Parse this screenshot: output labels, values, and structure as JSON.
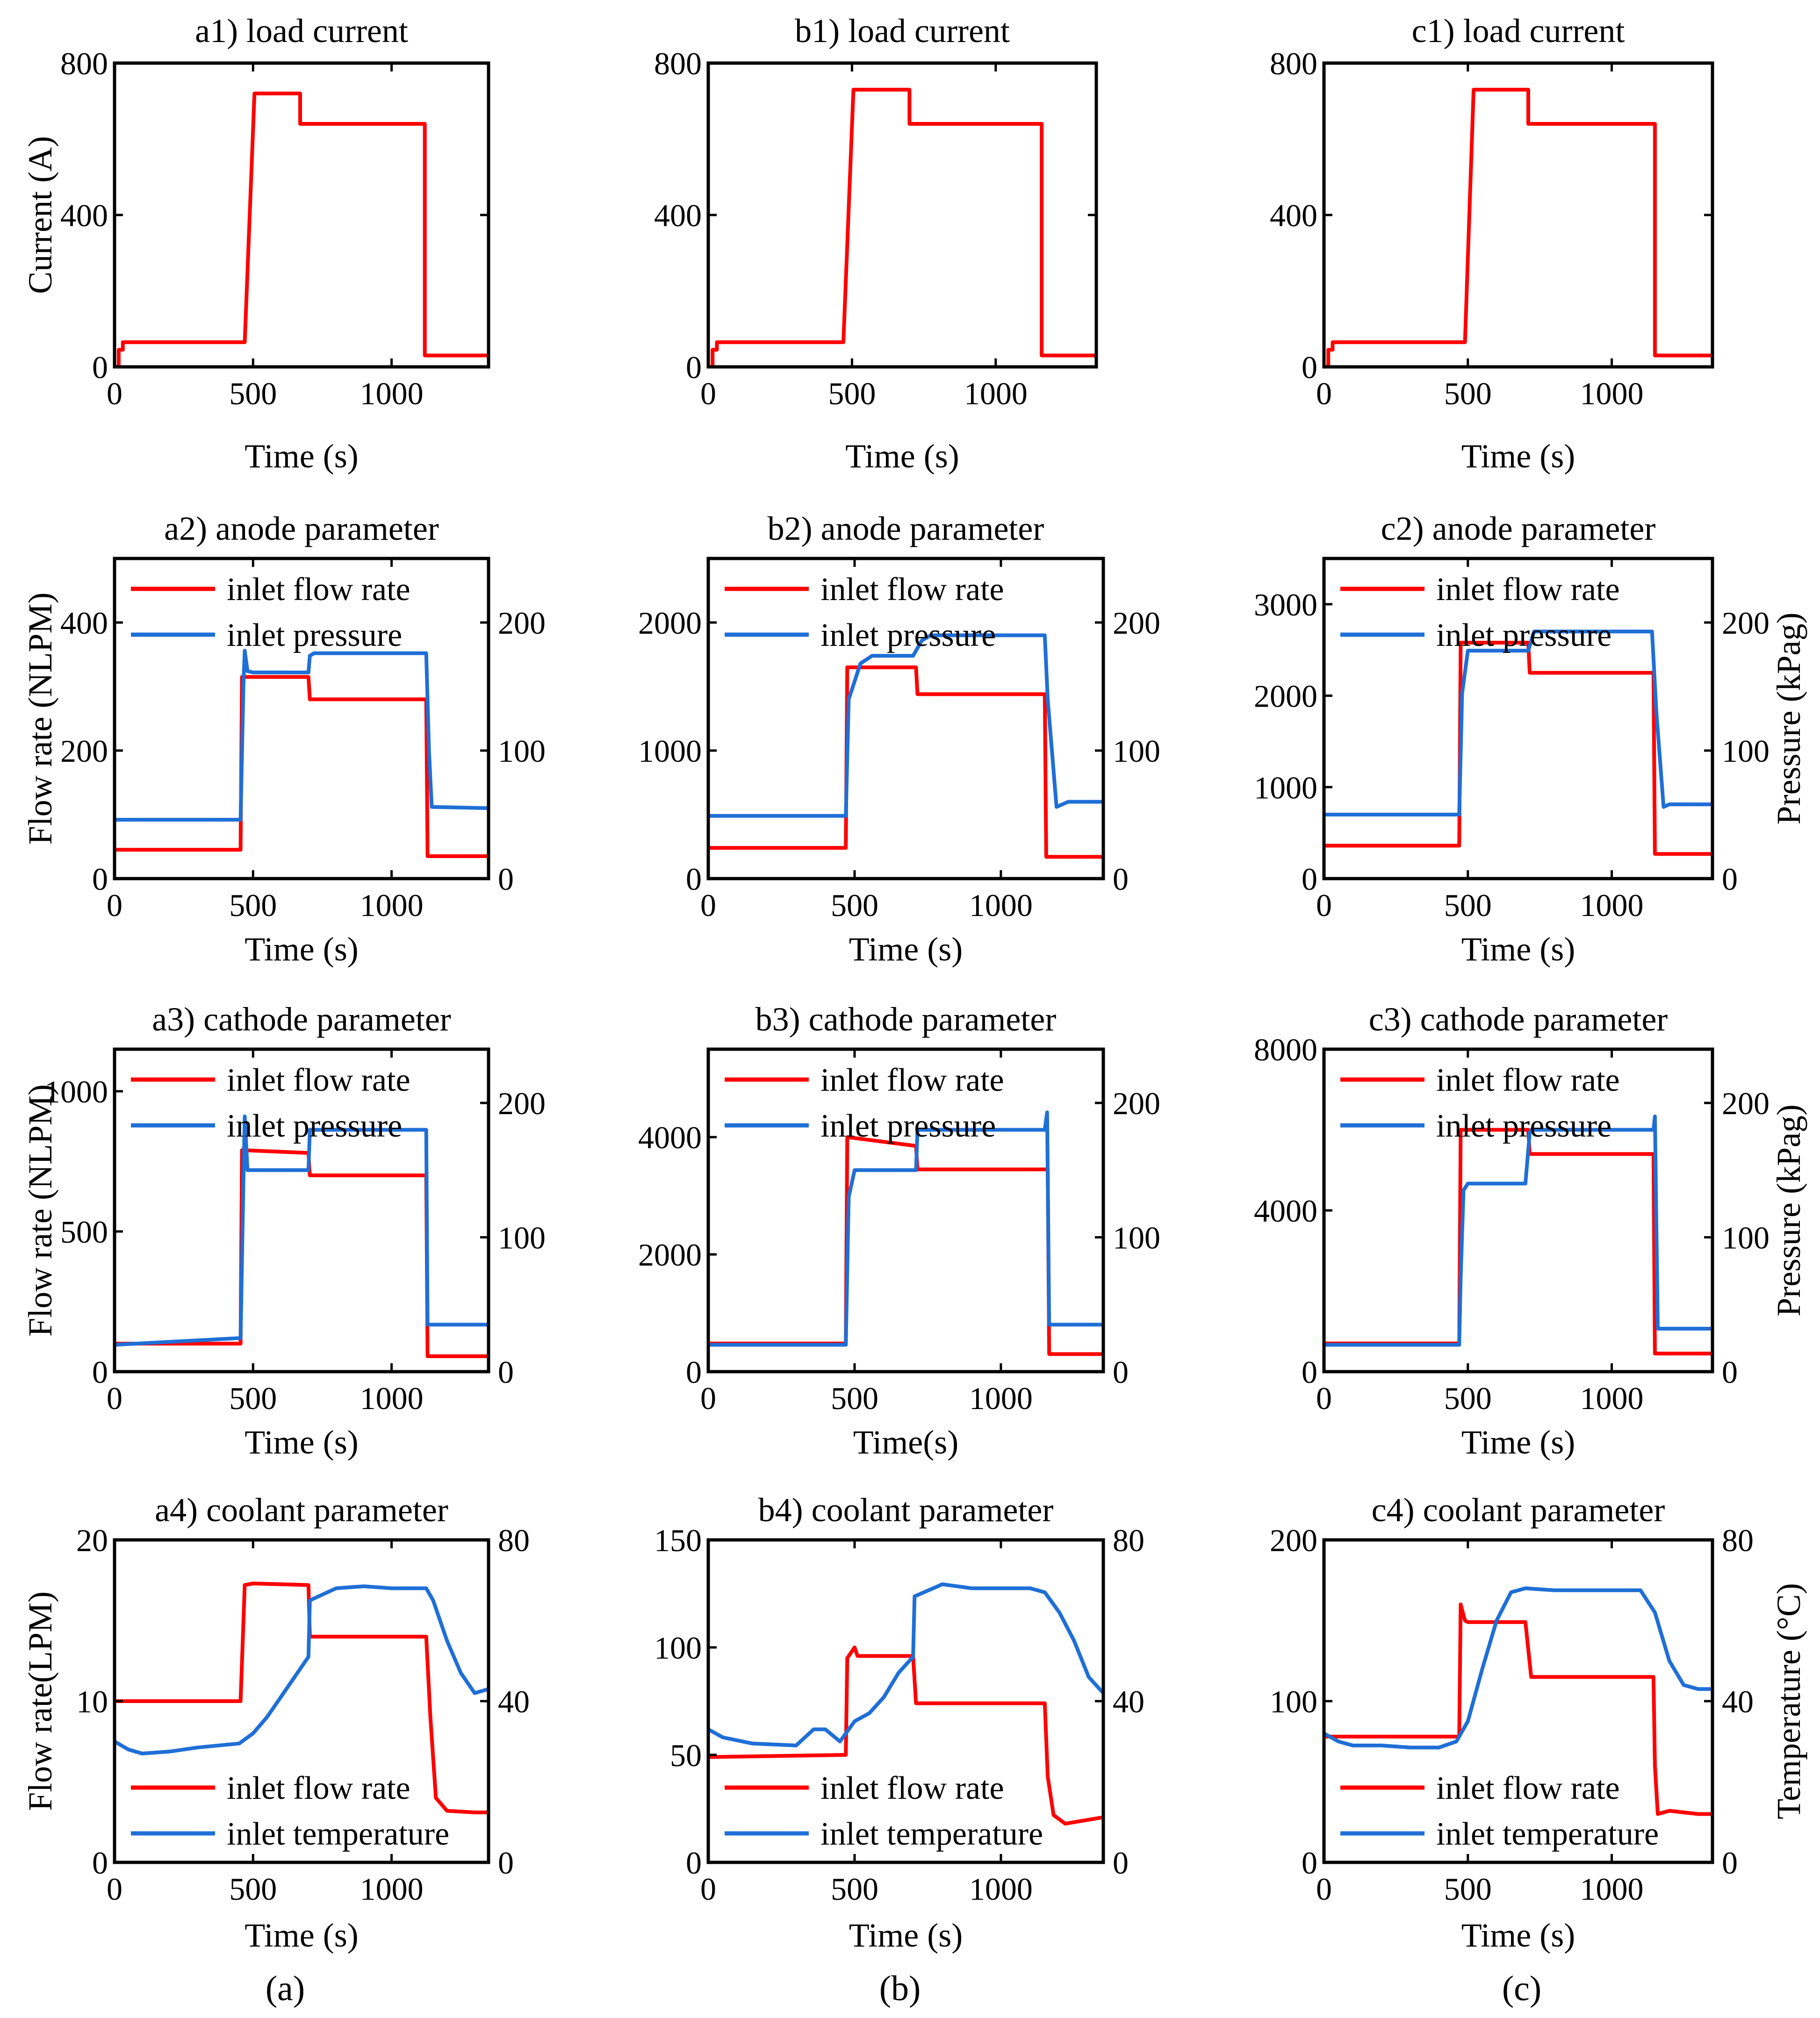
{
  "colors": {
    "red": "#ff0000",
    "blue": "#1f6fd6"
  },
  "group_labels": [
    "(a)",
    "(b)",
    "(c)"
  ],
  "chart_data": [
    {
      "id": "a1",
      "type": "line",
      "title": "a1) load current",
      "xlabel": "Time (s)",
      "ylabel": "Current (A)",
      "xlim": [
        0,
        1350
      ],
      "ylim": [
        0,
        800
      ],
      "xticks": [
        0,
        500,
        1000
      ],
      "yticks": [
        0,
        400,
        800
      ],
      "series": [
        {
          "name": "load current",
          "color": "red",
          "x": [
            0,
            15,
            15,
            30,
            30,
            470,
            505,
            505,
            670,
            670,
            1120,
            1120,
            1350
          ],
          "y": [
            0,
            0,
            45,
            45,
            65,
            65,
            720,
            720,
            720,
            640,
            640,
            30,
            30
          ]
        }
      ]
    },
    {
      "id": "b1",
      "type": "line",
      "title": "b1) load current",
      "xlabel": "Time (s)",
      "ylabel": "",
      "xlim": [
        0,
        1350
      ],
      "ylim": [
        0,
        800
      ],
      "xticks": [
        0,
        500,
        1000
      ],
      "yticks": [
        0,
        400,
        800
      ],
      "series": [
        {
          "name": "load current",
          "color": "red",
          "x": [
            0,
            15,
            15,
            30,
            30,
            470,
            505,
            505,
            700,
            700,
            1160,
            1160,
            1350
          ],
          "y": [
            0,
            0,
            45,
            45,
            65,
            65,
            730,
            730,
            730,
            640,
            640,
            30,
            30
          ]
        }
      ]
    },
    {
      "id": "c1",
      "type": "line",
      "title": "c1) load current",
      "xlabel": "Time (s)",
      "ylabel": "",
      "xlim": [
        0,
        1350
      ],
      "ylim": [
        0,
        800
      ],
      "xticks": [
        0,
        500,
        1000
      ],
      "yticks": [
        0,
        400,
        800
      ],
      "series": [
        {
          "name": "load current",
          "color": "red",
          "x": [
            0,
            15,
            15,
            30,
            30,
            490,
            520,
            520,
            710,
            710,
            1150,
            1150,
            1350
          ],
          "y": [
            0,
            0,
            45,
            45,
            65,
            65,
            730,
            730,
            730,
            640,
            640,
            30,
            30
          ]
        }
      ]
    },
    {
      "id": "a2",
      "type": "line",
      "title": "a2) anode parameter",
      "xlabel": "Time (s)",
      "ylabel": "Flow rate (NLPM)",
      "ylabel_right": "",
      "xlim": [
        0,
        1350
      ],
      "ylim": [
        0,
        500
      ],
      "ylim_right": [
        0,
        250
      ],
      "xticks": [
        0,
        500,
        1000
      ],
      "yticks": [
        0,
        200,
        400
      ],
      "yticks_right": [
        0,
        100,
        200
      ],
      "legend": "top-left",
      "series": [
        {
          "name": "inlet flow rate",
          "color": "red",
          "axis": "left",
          "x": [
            0,
            455,
            460,
            700,
            705,
            1125,
            1130,
            1350
          ],
          "y": [
            45,
            45,
            315,
            315,
            280,
            280,
            35,
            35
          ]
        },
        {
          "name": "inlet pressure",
          "color": "blue",
          "axis": "right",
          "x": [
            0,
            455,
            465,
            470,
            480,
            500,
            700,
            705,
            720,
            1125,
            1135,
            1145,
            1350
          ],
          "y": [
            46,
            46,
            150,
            178,
            162,
            161,
            161,
            174,
            176,
            176,
            100,
            56,
            55
          ]
        }
      ]
    },
    {
      "id": "b2",
      "type": "line",
      "title": "b2) anode parameter",
      "xlabel": "Time (s)",
      "ylabel": "",
      "ylabel_right": "",
      "xlim": [
        0,
        1350
      ],
      "ylim": [
        0,
        2500
      ],
      "ylim_right": [
        0,
        250
      ],
      "xticks": [
        0,
        500,
        1000
      ],
      "yticks": [
        0,
        1000,
        2000
      ],
      "yticks_right": [
        0,
        100,
        200
      ],
      "legend": "top-left",
      "series": [
        {
          "name": "inlet flow rate",
          "color": "red",
          "axis": "left",
          "x": [
            0,
            470,
            475,
            710,
            715,
            1150,
            1155,
            1350
          ],
          "y": [
            240,
            240,
            1650,
            1650,
            1440,
            1440,
            170,
            170
          ]
        },
        {
          "name": "inlet pressure",
          "color": "blue",
          "axis": "right",
          "x": [
            0,
            470,
            480,
            520,
            560,
            700,
            730,
            760,
            1150,
            1160,
            1190,
            1230,
            1350
          ],
          "y": [
            49,
            49,
            140,
            168,
            174,
            174,
            186,
            190,
            190,
            140,
            56,
            60,
            60
          ]
        }
      ]
    },
    {
      "id": "c2",
      "type": "line",
      "title": "c2) anode parameter",
      "xlabel": "Time (s)",
      "ylabel": "",
      "ylabel_right": "Pressure (kPag)",
      "xlim": [
        0,
        1350
      ],
      "ylim": [
        0,
        3500
      ],
      "ylim_right": [
        0,
        250
      ],
      "xticks": [
        0,
        500,
        1000
      ],
      "yticks": [
        0,
        1000,
        2000,
        3000
      ],
      "yticks_right": [
        0,
        100,
        200
      ],
      "legend": "top-left",
      "series": [
        {
          "name": "inlet flow rate",
          "color": "red",
          "axis": "left",
          "x": [
            0,
            470,
            475,
            710,
            715,
            1145,
            1150,
            1350
          ],
          "y": [
            360,
            360,
            2580,
            2580,
            2250,
            2250,
            270,
            270
          ]
        },
        {
          "name": "inlet pressure",
          "color": "blue",
          "axis": "right",
          "x": [
            0,
            470,
            480,
            500,
            710,
            730,
            1140,
            1155,
            1180,
            1200,
            1350
          ],
          "y": [
            50,
            50,
            145,
            178,
            178,
            193,
            193,
            130,
            56,
            58,
            58
          ]
        }
      ]
    },
    {
      "id": "a3",
      "type": "line",
      "title": "a3) cathode parameter",
      "xlabel": "Time (s)",
      "ylabel": "Flow rate (NLPM)",
      "ylabel_right": "",
      "xlim": [
        0,
        1350
      ],
      "ylim": [
        0,
        1150
      ],
      "ylim_right": [
        0,
        240
      ],
      "xticks": [
        0,
        500,
        1000
      ],
      "yticks": [
        0,
        500,
        1000
      ],
      "yticks_right": [
        0,
        100,
        200
      ],
      "legend": "top-left",
      "series": [
        {
          "name": "inlet flow rate",
          "color": "red",
          "axis": "left",
          "x": [
            0,
            455,
            460,
            700,
            705,
            1125,
            1130,
            1350
          ],
          "y": [
            100,
            100,
            790,
            780,
            700,
            700,
            55,
            55
          ]
        },
        {
          "name": "inlet pressure",
          "color": "blue",
          "axis": "right",
          "x": [
            0,
            455,
            465,
            470,
            480,
            700,
            705,
            1125,
            1130,
            1350
          ],
          "y": [
            20,
            25,
            140,
            190,
            150,
            150,
            180,
            180,
            35,
            35
          ]
        }
      ]
    },
    {
      "id": "b3",
      "type": "line",
      "title": "b3) cathode parameter",
      "xlabel": "Time(s)",
      "ylabel": "",
      "ylabel_right": "",
      "xlim": [
        0,
        1350
      ],
      "ylim": [
        0,
        5500
      ],
      "ylim_right": [
        0,
        240
      ],
      "xticks": [
        0,
        500,
        1000
      ],
      "yticks": [
        0,
        2000,
        4000
      ],
      "yticks_right": [
        0,
        100,
        200
      ],
      "legend": "top-left",
      "series": [
        {
          "name": "inlet flow rate",
          "color": "red",
          "axis": "left",
          "x": [
            0,
            470,
            475,
            710,
            715,
            1160,
            1165,
            1350
          ],
          "y": [
            480,
            480,
            4000,
            3850,
            3450,
            3450,
            300,
            300
          ]
        },
        {
          "name": "inlet pressure",
          "color": "blue",
          "axis": "right",
          "x": [
            0,
            470,
            480,
            500,
            710,
            715,
            1150,
            1158,
            1165,
            1175,
            1350
          ],
          "y": [
            20,
            20,
            130,
            150,
            150,
            180,
            180,
            193,
            35,
            35,
            35
          ]
        }
      ]
    },
    {
      "id": "c3",
      "type": "line",
      "title": "c3) cathode parameter",
      "xlabel": "Time (s)",
      "ylabel": "",
      "ylabel_right": "Pressure (kPag)",
      "xlim": [
        0,
        1350
      ],
      "ylim": [
        0,
        8000
      ],
      "ylim_right": [
        0,
        240
      ],
      "xticks": [
        0,
        500,
        1000
      ],
      "yticks": [
        0,
        4000,
        8000
      ],
      "yticks_right": [
        0,
        100,
        200
      ],
      "legend": "top-left",
      "series": [
        {
          "name": "inlet flow rate",
          "color": "red",
          "axis": "left",
          "x": [
            0,
            470,
            475,
            710,
            715,
            1145,
            1150,
            1350
          ],
          "y": [
            700,
            700,
            6000,
            6000,
            5400,
            5400,
            450,
            450
          ]
        },
        {
          "name": "inlet pressure",
          "color": "blue",
          "axis": "right",
          "x": [
            0,
            470,
            475,
            485,
            500,
            700,
            715,
            720,
            1145,
            1150,
            1160,
            1350
          ],
          "y": [
            20,
            20,
            70,
            135,
            140,
            140,
            178,
            180,
            180,
            190,
            32,
            32
          ]
        }
      ]
    },
    {
      "id": "a4",
      "type": "line",
      "title": "a4) coolant parameter",
      "xlabel": "Time (s)",
      "ylabel": "Flow rate(LPM)",
      "ylabel_right": "",
      "xlim": [
        0,
        1350
      ],
      "ylim": [
        0,
        20
      ],
      "ylim_right": [
        0,
        80
      ],
      "xticks": [
        0,
        500,
        1000
      ],
      "yticks": [
        0,
        10,
        20
      ],
      "yticks_right": [
        0,
        40,
        80
      ],
      "legend": "bottom-left",
      "series": [
        {
          "name": "inlet flow rate",
          "color": "red",
          "axis": "left",
          "x": [
            0,
            455,
            470,
            500,
            700,
            705,
            1125,
            1140,
            1160,
            1200,
            1300,
            1350
          ],
          "y": [
            10,
            10,
            17.2,
            17.3,
            17.2,
            14,
            14,
            9,
            4,
            3.2,
            3.1,
            3.1
          ]
        },
        {
          "name": "inlet temperature",
          "color": "blue",
          "axis": "right",
          "x": [
            0,
            50,
            100,
            200,
            300,
            450,
            500,
            550,
            600,
            650,
            700,
            705,
            800,
            900,
            1000,
            1125,
            1150,
            1200,
            1250,
            1300,
            1350
          ],
          "y": [
            30,
            28,
            27,
            27.5,
            28.5,
            29.5,
            32,
            36,
            41,
            46,
            51,
            65,
            68,
            68.5,
            68,
            68,
            65,
            55,
            47,
            42,
            43
          ]
        }
      ]
    },
    {
      "id": "b4",
      "type": "line",
      "title": "b4) coolant parameter",
      "xlabel": "Time (s)",
      "ylabel": "",
      "ylabel_right": "",
      "xlim": [
        0,
        1350
      ],
      "ylim": [
        0,
        150
      ],
      "ylim_right": [
        0,
        80
      ],
      "xticks": [
        0,
        500,
        1000
      ],
      "yticks": [
        0,
        50,
        100,
        150
      ],
      "yticks_right": [
        0,
        40,
        80
      ],
      "legend": "bottom-left",
      "series": [
        {
          "name": "inlet flow rate",
          "color": "red",
          "axis": "left",
          "x": [
            0,
            470,
            475,
            500,
            510,
            700,
            710,
            1150,
            1160,
            1180,
            1220,
            1350
          ],
          "y": [
            49,
            50,
            95,
            100,
            96,
            96,
            74,
            74,
            40,
            22,
            18,
            21
          ]
        },
        {
          "name": "inlet temperature",
          "color": "blue",
          "axis": "right",
          "x": [
            0,
            50,
            150,
            300,
            360,
            400,
            450,
            480,
            500,
            550,
            600,
            650,
            700,
            705,
            800,
            900,
            1000,
            1100,
            1150,
            1200,
            1250,
            1300,
            1350
          ],
          "y": [
            33,
            31,
            29.5,
            29,
            33,
            33,
            30,
            33,
            35,
            37,
            41,
            47,
            51,
            66,
            69,
            68,
            68,
            68,
            67,
            62,
            55,
            46,
            42
          ]
        }
      ]
    },
    {
      "id": "c4",
      "type": "line",
      "title": "c4) coolant parameter",
      "xlabel": "Time (s)",
      "ylabel": "",
      "ylabel_right": "Temperature (°C)",
      "xlim": [
        0,
        1350
      ],
      "ylim": [
        0,
        200
      ],
      "ylim_right": [
        0,
        80
      ],
      "xticks": [
        0,
        500,
        1000
      ],
      "yticks": [
        0,
        100,
        200
      ],
      "yticks_right": [
        0,
        40,
        80
      ],
      "legend": "bottom-left",
      "series": [
        {
          "name": "inlet flow rate",
          "color": "red",
          "axis": "left",
          "x": [
            0,
            470,
            475,
            490,
            500,
            700,
            720,
            1145,
            1150,
            1160,
            1200,
            1300,
            1350
          ],
          "y": [
            78,
            78,
            160,
            150,
            149,
            149,
            115,
            115,
            60,
            30,
            32,
            30,
            30
          ]
        },
        {
          "name": "inlet temperature",
          "color": "blue",
          "axis": "right",
          "x": [
            0,
            50,
            100,
            200,
            300,
            400,
            460,
            500,
            550,
            600,
            650,
            700,
            800,
            1100,
            1150,
            1200,
            1250,
            1300,
            1350
          ],
          "y": [
            32,
            30,
            29,
            29,
            28.5,
            28.5,
            30,
            35,
            48,
            60,
            67,
            68,
            67.5,
            67.5,
            62,
            50,
            44,
            43,
            43
          ]
        }
      ]
    }
  ]
}
